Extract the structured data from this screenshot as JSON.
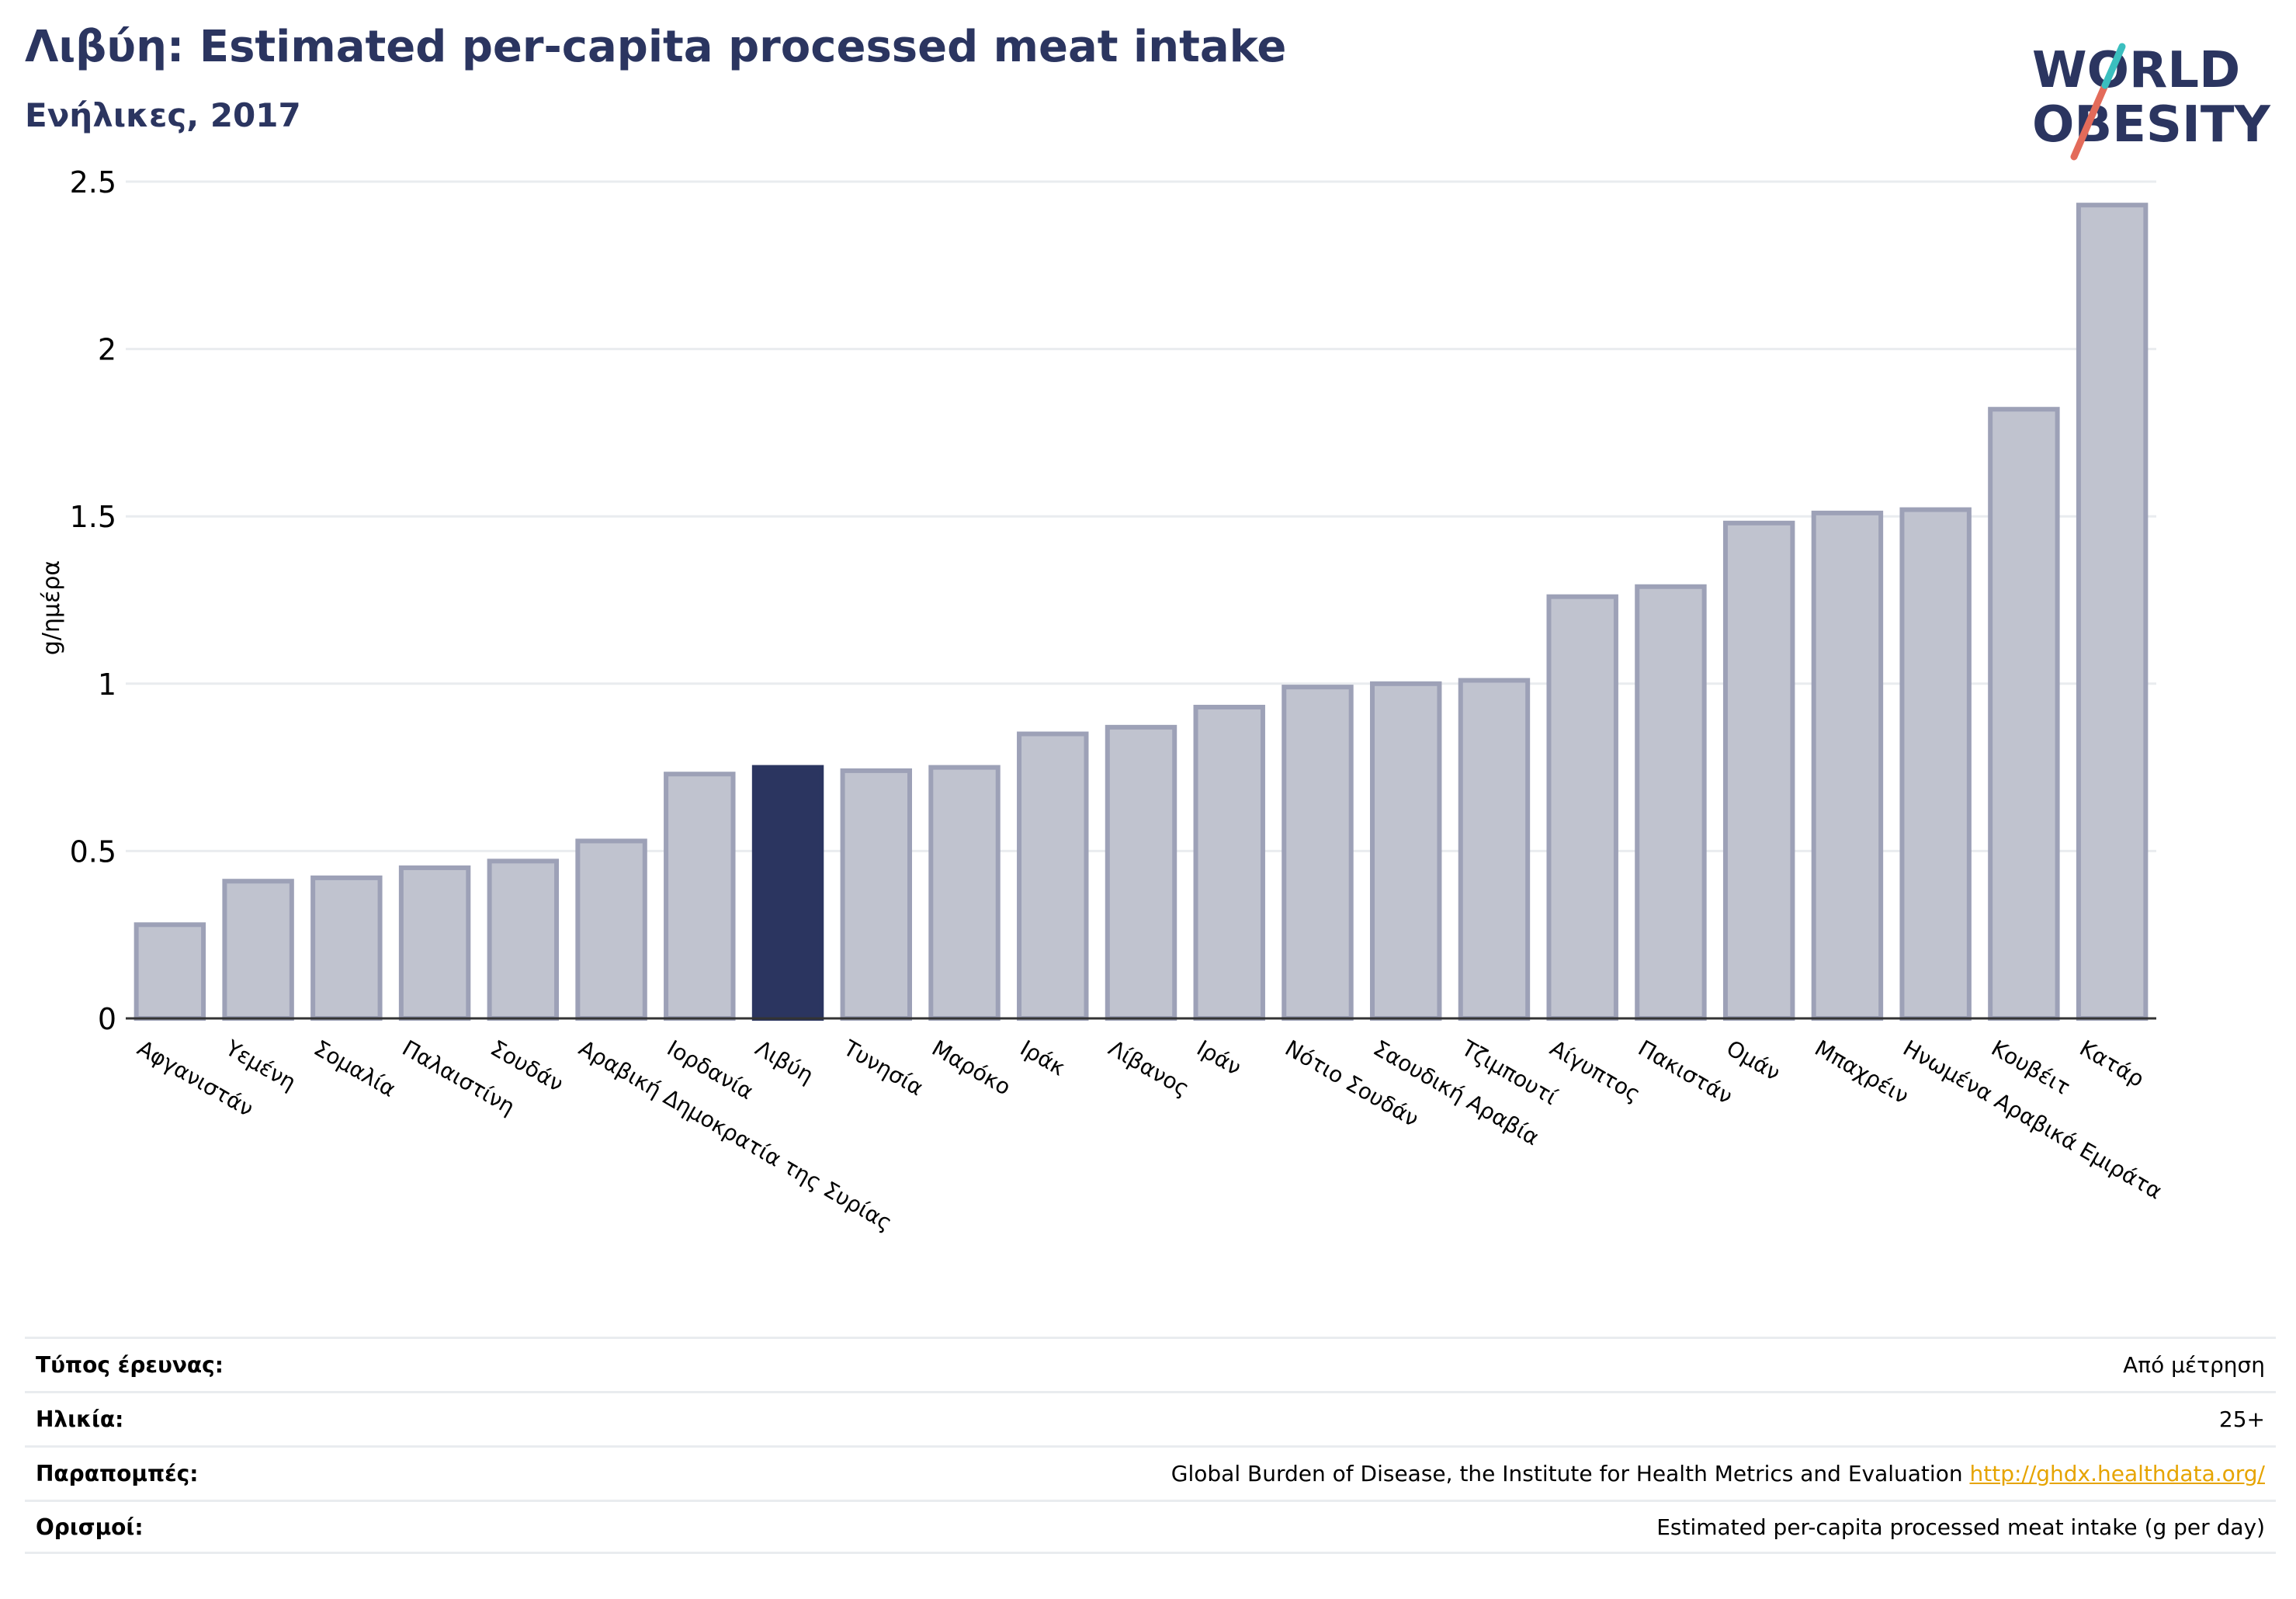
{
  "header": {
    "title": "Λιβύη: Estimated per-capita processed meat intake",
    "subtitle": "Ενήλικες, 2017"
  },
  "logo": {
    "line1": "WORLD",
    "line2": "OBESITY",
    "colors": [
      "#2b3560",
      "#e36b5a",
      "#3bbfbf"
    ]
  },
  "chart_data": {
    "type": "bar",
    "ylabel": "g/ημέρα",
    "ylim": [
      0,
      2.5
    ],
    "yticks": [
      0,
      0.5,
      1,
      1.5,
      2,
      2.5
    ],
    "ytick_labels": [
      "0",
      "0.5",
      "1",
      "1.5",
      "2",
      "2.5"
    ],
    "grid": true,
    "highlight": "Λιβύη",
    "colors": {
      "bar": "#c0c3cf",
      "bar_edge": "#9da1b7",
      "highlight": "#2b3560"
    },
    "categories": [
      "Αφγανιστάν",
      "Υεμένη",
      "Σομαλία",
      "Παλαιστίνη",
      "Σουδάν",
      "Αραβική Δημοκρατία της Συρίας",
      "Ιορδανία",
      "Λιβύη",
      "Τυνησία",
      "Μαρόκο",
      "Ιράκ",
      "Λίβανος",
      "Ιράν",
      "Νότιο Σουδάν",
      "Σαουδική Αραβία",
      "Τζιμπουτί",
      "Αίγυπτος",
      "Πακιστάν",
      "Ομάν",
      "Μπαχρέιν",
      "Ηνωμένα Αραβικά Εμιράτα",
      "Κουβέιτ",
      "Κατάρ"
    ],
    "values": [
      0.28,
      0.41,
      0.42,
      0.45,
      0.47,
      0.53,
      0.73,
      0.75,
      0.74,
      0.75,
      0.85,
      0.87,
      0.93,
      0.99,
      1.0,
      1.01,
      1.26,
      1.29,
      1.48,
      1.51,
      1.52,
      1.82,
      2.43
    ]
  },
  "info_table": [
    {
      "key": "Τύπος έρευνας:",
      "value": "Από μέτρηση",
      "link": ""
    },
    {
      "key": "Ηλικία:",
      "value": "25+",
      "link": ""
    },
    {
      "key": "Παραπομπές:",
      "value": "Global Burden of Disease, the Institute for Health Metrics and Evaluation",
      "link": "http://ghdx.healthdata.org/"
    },
    {
      "key": "Ορισμοί:",
      "value": "Estimated per-capita processed meat intake (g per day)",
      "link": ""
    }
  ]
}
